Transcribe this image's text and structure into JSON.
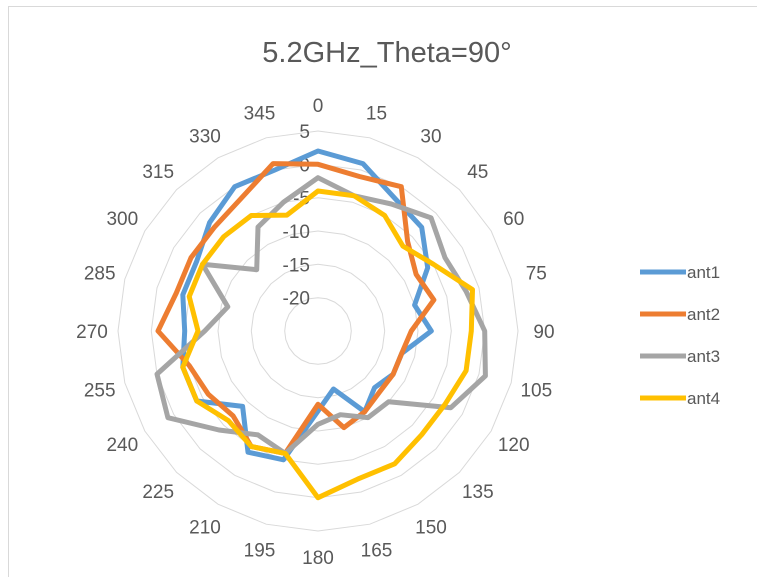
{
  "chart_data": {
    "type": "radar",
    "title": "5.2GHz_Theta=90°",
    "categories": [
      "0",
      "15",
      "30",
      "45",
      "60",
      "75",
      "90",
      "105",
      "120",
      "135",
      "150",
      "165",
      "180",
      "195",
      "210",
      "225",
      "240",
      "255",
      "270",
      "285",
      "300",
      "315",
      "330",
      "345"
    ],
    "r_ticks": [
      -20,
      -15,
      -10,
      -5,
      0,
      5
    ],
    "r_tick_labels": [
      "-20",
      "-15",
      "-10",
      "-5",
      "0",
      "5"
    ],
    "rlim": [
      -25,
      5
    ],
    "grid": true,
    "legend_position": "right",
    "series": [
      {
        "name": "ant1",
        "color": "#5B9BD5",
        "values": [
          2,
          1,
          -2,
          -3,
          -6,
          -10,
          -8,
          -12,
          -12,
          -13,
          -11,
          -16,
          -13,
          -5,
          -4,
          -9,
          -4,
          -4,
          -5,
          -4,
          -4,
          -2,
          0,
          0
        ]
      },
      {
        "name": "ant2",
        "color": "#ED7D31",
        "values": [
          0,
          -1,
          0,
          -6,
          -8,
          -7,
          -11,
          -12,
          -12,
          -12,
          -11,
          -10,
          -14,
          -6,
          -5,
          -7,
          -6,
          -5,
          -1,
          -3,
          -3,
          -3,
          -2,
          1
        ]
      },
      {
        "name": "ant3",
        "color": "#A5A5A5",
        "values": [
          -2,
          -4,
          -3,
          -1,
          -3,
          -2,
          0,
          1,
          -2,
          -10,
          -10,
          -12,
          -11,
          -6,
          -7,
          -4,
          1,
          0,
          -8,
          -11,
          -5,
          -12,
          -7,
          -5
        ]
      },
      {
        "name": "ant4",
        "color": "#FFC000",
        "values": [
          -4,
          -4,
          -5,
          -7,
          -5,
          -1,
          -2,
          -2,
          -3,
          -3,
          -2,
          -2,
          0,
          -6,
          -5,
          -6,
          -4,
          -4,
          -7,
          -5,
          -5,
          -5,
          -5,
          -7
        ]
      }
    ]
  }
}
